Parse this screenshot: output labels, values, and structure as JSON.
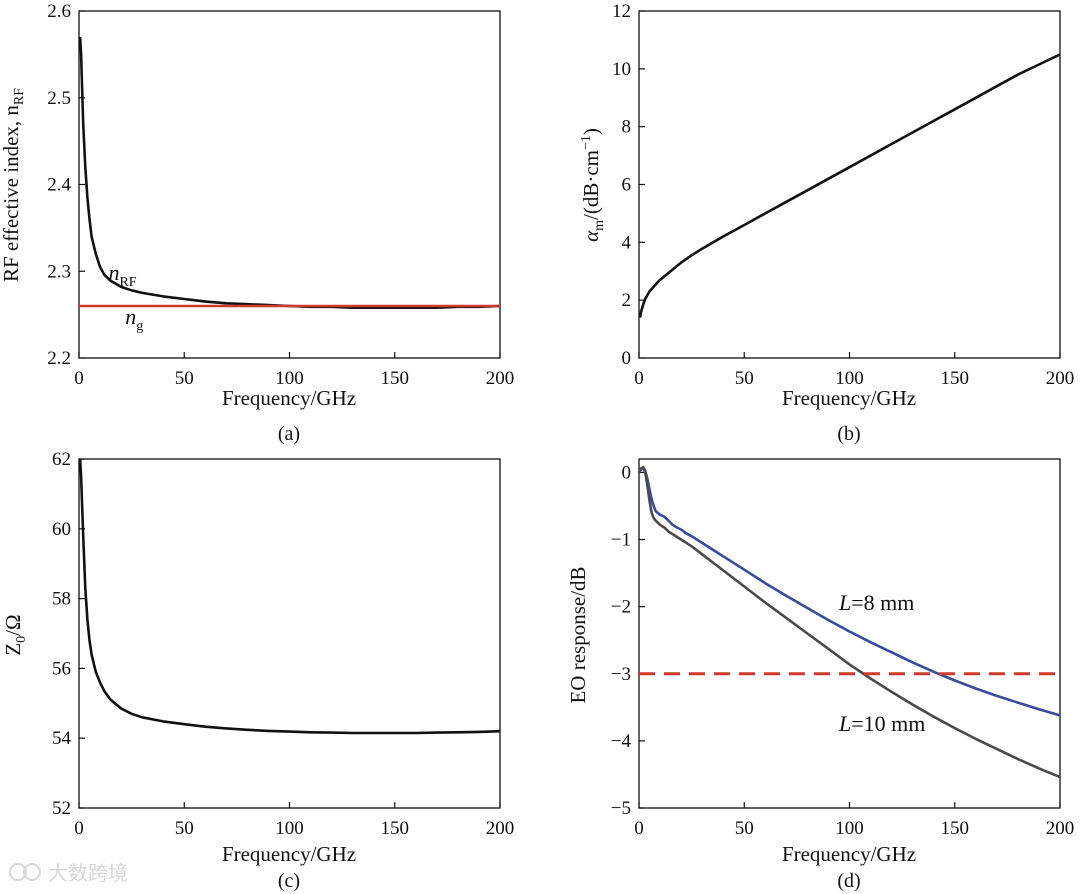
{
  "watermark": "大数跨境",
  "chart_data": [
    {
      "type": "line",
      "panel_label": "(a)",
      "xlabel": "Frequency/GHz",
      "ylabel": "RF effective index, n",
      "ylabel_sub": "RF",
      "xlim": [
        0,
        200
      ],
      "ylim": [
        2.2,
        2.6
      ],
      "xticks": [
        "0",
        "50",
        "100",
        "150",
        "200"
      ],
      "yticks": [
        "2.2",
        "2.3",
        "2.4",
        "2.5",
        "2.6"
      ],
      "grid": false,
      "series": [
        {
          "name": "n_RF",
          "color": "#111111",
          "x": [
            0.5,
            1,
            2,
            3,
            4,
            5,
            6,
            8,
            10,
            12,
            15,
            20,
            25,
            30,
            40,
            50,
            60,
            70,
            80,
            90,
            100,
            110,
            120,
            130,
            140,
            150,
            160,
            170,
            180,
            190,
            200
          ],
          "y": [
            2.57,
            2.55,
            2.47,
            2.42,
            2.385,
            2.36,
            2.34,
            2.32,
            2.305,
            2.296,
            2.289,
            2.282,
            2.278,
            2.275,
            2.271,
            2.268,
            2.265,
            2.263,
            2.262,
            2.261,
            2.26,
            2.259,
            2.259,
            2.258,
            2.258,
            2.258,
            2.258,
            2.258,
            2.259,
            2.259,
            2.26
          ]
        },
        {
          "name": "n_g",
          "color": "#d03a2c",
          "x": [
            0,
            200
          ],
          "y": [
            2.26,
            2.26
          ]
        }
      ],
      "annotations": [
        {
          "text": "n",
          "sub": "RF",
          "x": 14,
          "y": 2.29
        },
        {
          "text": "n",
          "sub": "g",
          "x": 22,
          "y": 2.239
        }
      ]
    },
    {
      "type": "line",
      "panel_label": "(b)",
      "xlabel": "Frequency/GHz",
      "ylabel": "α",
      "ylabel_sub": "m",
      "ylabel_rest": "/(dB·cm",
      "ylabel_sup": "−1",
      "ylabel_end": ")",
      "xlim": [
        0,
        200
      ],
      "ylim": [
        0,
        12
      ],
      "xticks": [
        "0",
        "50",
        "100",
        "150",
        "200"
      ],
      "yticks": [
        "0",
        "2",
        "4",
        "6",
        "8",
        "10",
        "12"
      ],
      "grid": false,
      "series": [
        {
          "name": "alpha_m",
          "color": "#111111",
          "x": [
            0.5,
            1,
            2,
            3,
            5,
            8,
            10,
            15,
            20,
            25,
            30,
            40,
            50,
            60,
            70,
            80,
            90,
            100,
            110,
            120,
            130,
            140,
            150,
            160,
            170,
            180,
            190,
            200
          ],
          "y": [
            1.4,
            1.6,
            1.85,
            2.05,
            2.3,
            2.55,
            2.7,
            3.0,
            3.3,
            3.55,
            3.78,
            4.2,
            4.6,
            5.0,
            5.4,
            5.8,
            6.2,
            6.6,
            7.0,
            7.4,
            7.8,
            8.2,
            8.6,
            9.0,
            9.4,
            9.8,
            10.15,
            10.5
          ]
        }
      ]
    },
    {
      "type": "line",
      "panel_label": "(c)",
      "xlabel": "Frequency/GHz",
      "ylabel": "Z",
      "ylabel_sub": "0",
      "ylabel_rest": "/Ω",
      "xlim": [
        0,
        200
      ],
      "ylim": [
        52,
        62
      ],
      "xticks": [
        "0",
        "50",
        "100",
        "150",
        "200"
      ],
      "yticks": [
        "52",
        "54",
        "56",
        "58",
        "60",
        "62"
      ],
      "grid": false,
      "series": [
        {
          "name": "Z0",
          "color": "#111111",
          "x": [
            0.5,
            1,
            2,
            3,
            4,
            5,
            6,
            8,
            10,
            12,
            15,
            20,
            25,
            30,
            40,
            50,
            60,
            70,
            80,
            90,
            100,
            110,
            120,
            130,
            140,
            150,
            160,
            170,
            180,
            190,
            200
          ],
          "y": [
            62.0,
            61.5,
            59.8,
            58.3,
            57.4,
            56.8,
            56.4,
            55.9,
            55.6,
            55.35,
            55.1,
            54.85,
            54.7,
            54.6,
            54.48,
            54.4,
            54.33,
            54.28,
            54.24,
            54.21,
            54.19,
            54.17,
            54.16,
            54.15,
            54.15,
            54.15,
            54.15,
            54.16,
            54.17,
            54.18,
            54.2
          ]
        }
      ]
    },
    {
      "type": "line",
      "panel_label": "(d)",
      "xlabel": "Frequency/GHz",
      "ylabel": "EO response/dB",
      "xlim": [
        0,
        200
      ],
      "ylim": [
        -5,
        0.2
      ],
      "xticks": [
        "0",
        "50",
        "100",
        "150",
        "200"
      ],
      "yticks": [
        "0",
        "−1",
        "−2",
        "−3",
        "−4",
        "−5"
      ],
      "grid": false,
      "series": [
        {
          "name": "L=8 mm",
          "color": "#3a4aa0",
          "x": [
            0,
            1,
            2,
            3,
            4,
            5,
            6,
            7,
            8,
            10,
            12,
            14,
            16,
            18,
            20,
            22,
            25,
            30,
            35,
            40,
            50,
            60,
            70,
            80,
            90,
            100,
            110,
            120,
            130,
            140,
            150,
            160,
            170,
            180,
            190,
            200
          ],
          "y": [
            0.0,
            0.05,
            0.07,
            0.02,
            -0.1,
            -0.25,
            -0.4,
            -0.5,
            -0.58,
            -0.63,
            -0.66,
            -0.72,
            -0.78,
            -0.82,
            -0.85,
            -0.9,
            -0.95,
            -1.05,
            -1.15,
            -1.25,
            -1.45,
            -1.65,
            -1.84,
            -2.02,
            -2.2,
            -2.37,
            -2.53,
            -2.68,
            -2.83,
            -2.97,
            -3.1,
            -3.22,
            -3.33,
            -3.43,
            -3.53,
            -3.62
          ]
        },
        {
          "name": "L=10 mm",
          "color": "#4a4a4a",
          "x": [
            0,
            1,
            2,
            3,
            4,
            5,
            6,
            7,
            8,
            10,
            12,
            14,
            16,
            18,
            20,
            22,
            25,
            30,
            35,
            40,
            50,
            60,
            70,
            80,
            90,
            100,
            110,
            120,
            130,
            140,
            150,
            160,
            170,
            180,
            190,
            200
          ],
          "y": [
            0.0,
            0.06,
            0.08,
            0.0,
            -0.2,
            -0.42,
            -0.6,
            -0.68,
            -0.72,
            -0.78,
            -0.82,
            -0.88,
            -0.92,
            -0.96,
            -1.0,
            -1.04,
            -1.1,
            -1.22,
            -1.34,
            -1.46,
            -1.7,
            -1.94,
            -2.17,
            -2.4,
            -2.63,
            -2.86,
            -3.07,
            -3.27,
            -3.46,
            -3.64,
            -3.81,
            -3.97,
            -4.12,
            -4.27,
            -4.41,
            -4.54
          ]
        },
        {
          "name": "-3 dB",
          "color": "#d03a2c",
          "dashed": true,
          "x": [
            0,
            200
          ],
          "y": [
            -3,
            -3
          ]
        }
      ],
      "annotations": [
        {
          "text": "L",
          "rest": "=8 mm",
          "x": 95,
          "y": -2.05
        },
        {
          "text": "L",
          "rest": "=10 mm",
          "x": 95,
          "y": -3.85
        }
      ]
    }
  ]
}
